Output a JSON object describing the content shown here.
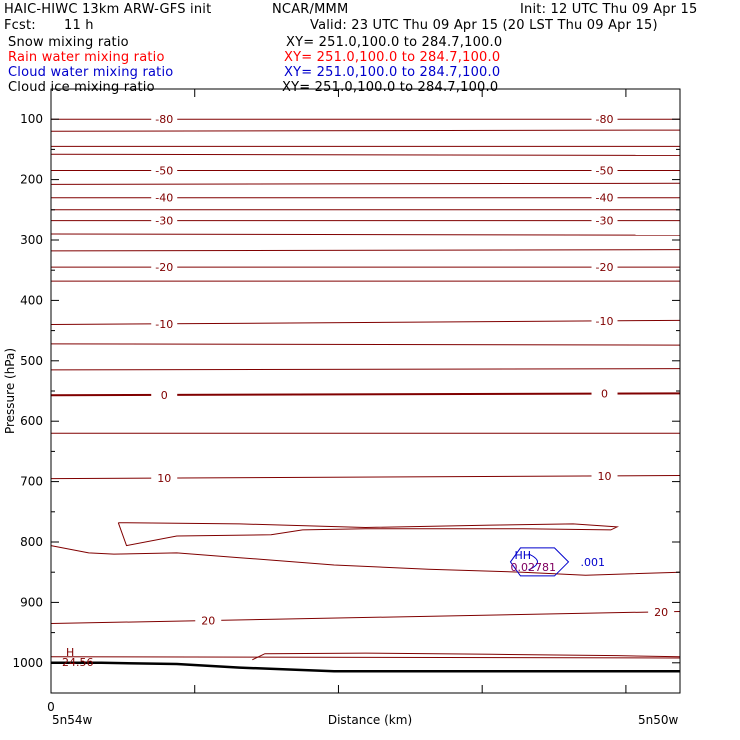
{
  "header": {
    "model": "HAIC-HIWC 13km ARW-GFS init",
    "center": "NCAR/MMM",
    "init": "Init: 12 UTC Thu 09 Apr 15",
    "fcst_label": "Fcst:",
    "fcst_value": "11 h",
    "valid": "Valid: 23 UTC Thu 09 Apr 15 (20 LST Thu 09 Apr 15)"
  },
  "fields": [
    {
      "name": "Snow mixing ratio",
      "xy": "XY= 251.0,100.0 to 284.7,100.0",
      "color": "#000000"
    },
    {
      "name": "Rain water mixing ratio",
      "xy": "XY= 251.0,100.0 to 284.7,100.0",
      "color": "#ff0000"
    },
    {
      "name": "Cloud water mixing ratio",
      "xy": "XY= 251.0,100.0 to 284.7,100.0",
      "color": "#0000cc"
    },
    {
      "name": "Cloud ice mixing ratio",
      "xy": "XY= 251.0,100.0 to 284.7,100.0",
      "color": "#000000"
    }
  ],
  "chart_data": {
    "type": "line",
    "ylabel": "Pressure (hPa)",
    "xlabel": "Distance (km)",
    "x_ticks": [
      "0"
    ],
    "x_endpoint_labels": [
      "5n54w",
      "5n50w"
    ],
    "y_ticks": [
      100,
      200,
      300,
      400,
      500,
      600,
      700,
      800,
      900,
      1000
    ],
    "ylim": [
      1050,
      50
    ],
    "xlim": [
      0,
      1
    ],
    "temperature_color": "#800000",
    "isotherms": [
      {
        "label": "-80",
        "y": [
          100,
          100
        ]
      },
      {
        "label": "-50",
        "y": [
          185,
          185
        ]
      },
      {
        "label": "-40",
        "y": [
          230,
          230
        ]
      },
      {
        "label": "-30",
        "y": [
          268,
          268
        ]
      },
      {
        "label": "-20",
        "y": [
          345,
          345
        ]
      },
      {
        "label": "-10",
        "y": [
          440,
          433
        ]
      },
      {
        "label": "0",
        "y": [
          557,
          554
        ]
      },
      {
        "label": "10",
        "y": [
          695,
          690
        ]
      },
      {
        "label": "20",
        "y": [
          935,
          915
        ]
      }
    ],
    "extra_isotherm_lines_y": [
      120,
      145,
      158,
      208,
      250,
      290,
      318,
      368,
      472,
      515,
      620,
      990
    ],
    "cloud_water_contour_label": ".001",
    "cloud_water_max_label": "HH",
    "cloud_water_max_value": "0.02781",
    "temperature_max_label": "H",
    "temperature_max_value": "24.56",
    "surface_pressure": [
      {
        "x": 0.0,
        "p": 1000
      },
      {
        "x": 0.08,
        "p": 1000
      },
      {
        "x": 0.2,
        "p": 1002
      },
      {
        "x": 0.3,
        "p": 1008
      },
      {
        "x": 0.45,
        "p": 1014
      },
      {
        "x": 1.0,
        "p": 1014
      }
    ]
  }
}
